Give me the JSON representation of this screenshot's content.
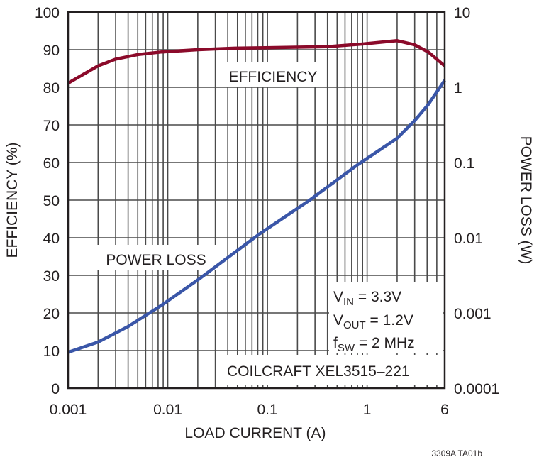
{
  "chart_data": {
    "type": "line",
    "xscale": "log",
    "xlim": [
      0.001,
      6
    ],
    "xlabel": "LOAD CURRENT (A)",
    "xticks": [
      "0.001",
      "0.01",
      "0.1",
      "1",
      "6"
    ],
    "y_left": {
      "label": "EFFICIENCY (%)",
      "lim": [
        0,
        100
      ],
      "scale": "linear",
      "ticks": [
        "0",
        "10",
        "20",
        "30",
        "40",
        "50",
        "60",
        "70",
        "80",
        "90",
        "100"
      ]
    },
    "y_right": {
      "label": "POWER LOSS (W)",
      "lim": [
        0.0001,
        10
      ],
      "scale": "log",
      "ticks": [
        "0.0001",
        "0.001",
        "0.01",
        "0.1",
        "1",
        "10"
      ]
    },
    "grid": true,
    "series": [
      {
        "name": "EFFICIENCY",
        "axis": "left",
        "color": "#8b0a2a",
        "x": [
          0.001,
          0.002,
          0.003,
          0.005,
          0.0087,
          0.02,
          0.047,
          0.4,
          0.9,
          2,
          3,
          4.1,
          6
        ],
        "y": [
          81.1,
          85.7,
          87.5,
          88.7,
          89.4,
          90.0,
          90.4,
          90.8,
          91.5,
          92.4,
          91.3,
          89.4,
          85.7
        ]
      },
      {
        "name": "POWER LOSS",
        "axis": "right",
        "color": "#3a56a8",
        "x": [
          0.001,
          0.002,
          0.004,
          0.0087,
          0.0204,
          0.083,
          0.26,
          0.8,
          2,
          3,
          4.1,
          6
        ],
        "y": [
          0.0003,
          0.00041,
          0.00066,
          0.00127,
          0.0028,
          0.0112,
          0.031,
          0.093,
          0.21,
          0.36,
          0.59,
          1.24
        ]
      }
    ],
    "annotations": {
      "vin": {
        "v": "V",
        "sub": "IN",
        "rest": " = 3.3V"
      },
      "vout": {
        "v": "V",
        "sub": "OUT",
        "rest": " = 1.2V"
      },
      "fsw": {
        "v": "f",
        "sub": "SW",
        "rest": " = 2 MHz"
      },
      "inductor": "COILCRAFT XEL3515–221"
    },
    "figure_id": "3309A TA01b"
  }
}
